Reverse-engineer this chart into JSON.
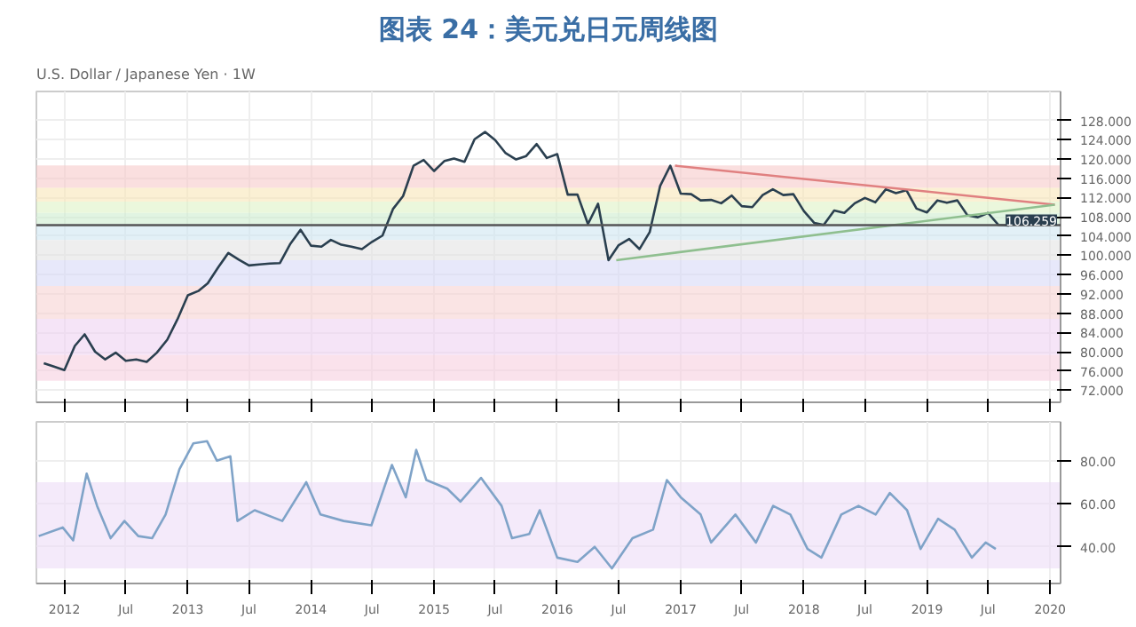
{
  "chart_data": [
    {
      "type": "line",
      "title": "图表 24：美元兑日元周线图",
      "subtitle": "U.S. Dollar / Japanese Yen · 1W",
      "grid": true,
      "tick_labels": "y",
      "xlim": [
        "2011-10-10",
        "2020-02-01"
      ],
      "xticks": [
        {
          "value": "2012",
          "label": null
        },
        {
          "value": "2012-07",
          "label": null
        },
        {
          "value": "2013",
          "label": null
        },
        {
          "value": "2013-07",
          "label": null
        },
        {
          "value": "2014",
          "label": null
        },
        {
          "value": "2014-07",
          "label": null
        },
        {
          "value": "2015",
          "label": null
        },
        {
          "value": "2015-07",
          "label": null
        },
        {
          "value": "2016",
          "label": null
        },
        {
          "value": "2016-07",
          "label": null
        },
        {
          "value": "2017",
          "label": null
        },
        {
          "value": "2017-07",
          "label": null
        },
        {
          "value": "2018",
          "label": null
        },
        {
          "value": "2018-07",
          "label": null
        },
        {
          "value": "2019",
          "label": null
        },
        {
          "value": "2019-07",
          "label": null
        },
        {
          "value": "2020",
          "label": null
        }
      ],
      "ylim": [
        69.5,
        134
      ],
      "yticks": [
        {
          "value": 72,
          "label": "72.000"
        },
        {
          "value": 76,
          "label": "76.000"
        },
        {
          "value": 80,
          "label": "80.000"
        },
        {
          "value": 84,
          "label": "84.000"
        },
        {
          "value": 88,
          "label": "88.000"
        },
        {
          "value": 92,
          "label": "92.000"
        },
        {
          "value": 96,
          "label": "96.000"
        },
        {
          "value": 100,
          "label": "100.000"
        },
        {
          "value": 104,
          "label": "104.000"
        },
        {
          "value": 108,
          "label": "108.000"
        },
        {
          "value": 112,
          "label": "112.000"
        },
        {
          "value": 116,
          "label": "116.000"
        },
        {
          "value": 120,
          "label": "120.000"
        },
        {
          "value": 124,
          "label": "124.000"
        },
        {
          "value": 128,
          "label": "128.000"
        }
      ],
      "bands": [
        {
          "axis": "y",
          "from": 114.0,
          "to": 118.66,
          "color": "#f6c9c9"
        },
        {
          "axis": "y",
          "from": 111.14,
          "to": 114.0,
          "color": "#f9e6b8"
        },
        {
          "axis": "y",
          "from": 108.82,
          "to": 111.14,
          "color": "#def2c4"
        },
        {
          "axis": "y",
          "from": 106.5,
          "to": 108.82,
          "color": "#cdeccf"
        },
        {
          "axis": "y",
          "from": 103.19,
          "to": 106.5,
          "color": "#cfe6f2"
        },
        {
          "axis": "y",
          "from": 98.98,
          "to": 103.19,
          "color": "#e3e3e3"
        },
        {
          "axis": "y",
          "from": 93.63,
          "to": 98.98,
          "color": "#d7d9f7"
        },
        {
          "axis": "y",
          "from": 86.82,
          "to": 93.63,
          "color": "#f7d2d2"
        },
        {
          "axis": "y",
          "from": 79.31,
          "to": 86.82,
          "color": "#efd2f2"
        },
        {
          "axis": "y",
          "from": 73.96,
          "to": 79.31,
          "color": "#f7cfe0"
        }
      ],
      "ref_lines": [
        {
          "axis": "y",
          "value": 106.259,
          "label": "106.259",
          "color": "#555555"
        }
      ],
      "series": [
        {
          "color": "#2a3f4f",
          "x": [
            "2011-11",
            "2011-12",
            "2012-01",
            "2012-02",
            "2012-03",
            "2012-04",
            "2012-05",
            "2012-06",
            "2012-07",
            "2012-08",
            "2012-09",
            "2012-10",
            "2012-11",
            "2012-12",
            "2013-01",
            "2013-02",
            "2013-03",
            "2013-04",
            "2013-05",
            "2013-06",
            "2013-07",
            "2013-08",
            "2013-09",
            "2013-10",
            "2013-11",
            "2013-12",
            "2014-01",
            "2014-02",
            "2014-03",
            "2014-04",
            "2014-05",
            "2014-06",
            "2014-07",
            "2014-08",
            "2014-09",
            "2014-10",
            "2014-11",
            "2014-12",
            "2015-01",
            "2015-02",
            "2015-03",
            "2015-04",
            "2015-05",
            "2015-06",
            "2015-07",
            "2015-08",
            "2015-09",
            "2015-10",
            "2015-11",
            "2015-12",
            "2016-01",
            "2016-02",
            "2016-03",
            "2016-04",
            "2016-05",
            "2016-06",
            "2016-07",
            "2016-08",
            "2016-09",
            "2016-10",
            "2016-11",
            "2016-12",
            "2017-01",
            "2017-02",
            "2017-03",
            "2017-04",
            "2017-05",
            "2017-06",
            "2017-07",
            "2017-08",
            "2017-09",
            "2017-10",
            "2017-11",
            "2017-12",
            "2018-01",
            "2018-02",
            "2018-03",
            "2018-04",
            "2018-05",
            "2018-06",
            "2018-07",
            "2018-08",
            "2018-09",
            "2018-10",
            "2018-11",
            "2018-12",
            "2019-01",
            "2019-02",
            "2019-03",
            "2019-04",
            "2019-05",
            "2019-06",
            "2019-07",
            "2019-08",
            "2019-09"
          ],
          "values": [
            77.6,
            76.9,
            76.2,
            81.2,
            83.6,
            80.0,
            78.4,
            79.8,
            78.1,
            78.4,
            77.9,
            79.8,
            82.5,
            86.7,
            91.7,
            92.6,
            94.2,
            97.5,
            100.5,
            99.1,
            97.9,
            98.1,
            98.3,
            98.4,
            102.4,
            105.3,
            102.0,
            101.8,
            103.2,
            102.2,
            101.8,
            101.3,
            102.8,
            104.1,
            109.6,
            112.3,
            118.6,
            119.8,
            117.5,
            119.6,
            120.1,
            119.4,
            124.1,
            125.6,
            123.9,
            121.2,
            119.9,
            120.6,
            123.1,
            120.2,
            121.0,
            112.6,
            112.6,
            106.5,
            110.7,
            99.0,
            102.1,
            103.4,
            101.3,
            104.8,
            114.4,
            118.6,
            112.8,
            112.7,
            111.4,
            111.5,
            110.8,
            112.4,
            110.2,
            110.0,
            112.5,
            113.7,
            112.5,
            112.7,
            109.2,
            106.7,
            106.3,
            109.3,
            108.8,
            110.8,
            111.9,
            111.0,
            113.7,
            112.9,
            113.5,
            109.7,
            108.9,
            111.4,
            110.9,
            111.4,
            108.3,
            107.9,
            108.8,
            106.3,
            106.2
          ]
        },
        {
          "color": "#e08080",
          "x": [
            "2016-12-15",
            "2020-01-15"
          ],
          "values": [
            118.6,
            110.5
          ]
        },
        {
          "color": "#8fbf8f",
          "x": [
            "2016-06-24",
            "2020-01-15"
          ],
          "values": [
            99.0,
            110.5
          ]
        }
      ]
    },
    {
      "type": "line",
      "grid": true,
      "xlim": [
        "2011-10-10",
        "2020-02-01"
      ],
      "xticks": [
        {
          "value": "2012",
          "label": "2012"
        },
        {
          "value": "2012-07",
          "label": "Jul"
        },
        {
          "value": "2013",
          "label": "2013"
        },
        {
          "value": "2013-07",
          "label": "Jul"
        },
        {
          "value": "2014",
          "label": "2014"
        },
        {
          "value": "2014-07",
          "label": "Jul"
        },
        {
          "value": "2015",
          "label": "2015"
        },
        {
          "value": "2015-07",
          "label": "Jul"
        },
        {
          "value": "2016",
          "label": "2016"
        },
        {
          "value": "2016-07",
          "label": "Jul"
        },
        {
          "value": "2017",
          "label": "2017"
        },
        {
          "value": "2017-07",
          "label": "Jul"
        },
        {
          "value": "2018",
          "label": "2018"
        },
        {
          "value": "2018-07",
          "label": "Jul"
        },
        {
          "value": "2019",
          "label": "2019"
        },
        {
          "value": "2019-07",
          "label": "Jul"
        },
        {
          "value": "2020",
          "label": "2020"
        }
      ],
      "ylim": [
        23,
        98
      ],
      "yticks": [
        {
          "value": 40,
          "label": "40.00"
        },
        {
          "value": 60,
          "label": "60.00"
        },
        {
          "value": 80,
          "label": "80.00"
        }
      ],
      "bands": [
        {
          "axis": "y",
          "from": 30,
          "to": 70,
          "color": "#ecdcf7"
        }
      ],
      "series": [
        {
          "color": "#7fa3c8",
          "x": [
            "2011-10-17",
            "2011-12-27",
            "2012-01-27",
            "2012-03-07",
            "2012-04-07",
            "2012-05-17",
            "2012-06-27",
            "2012-08-07",
            "2012-09-17",
            "2012-10-27",
            "2012-12-07",
            "2013-01-17",
            "2013-02-27",
            "2013-03-28",
            "2013-05-07",
            "2013-05-28",
            "2013-07-18",
            "2013-10-08",
            "2013-12-18",
            "2014-01-29",
            "2014-04-08",
            "2014-06-29",
            "2014-08-29",
            "2014-10-09",
            "2014-11-09",
            "2014-12-09",
            "2015-02-09",
            "2015-03-20",
            "2015-05-20",
            "2015-07-20",
            "2015-08-20",
            "2015-10-10",
            "2015-11-10",
            "2016-01-01",
            "2016-03-01",
            "2016-04-21",
            "2016-06-11",
            "2016-08-11",
            "2016-10-11",
            "2016-11-21",
            "2017-01-01",
            "2017-03-01",
            "2017-04-01",
            "2017-06-12",
            "2017-08-12",
            "2017-10-02",
            "2017-11-22",
            "2018-01-12",
            "2018-02-22",
            "2018-04-22",
            "2018-06-12",
            "2018-08-02",
            "2018-09-13",
            "2018-11-03",
            "2018-12-13",
            "2019-02-03",
            "2019-03-24",
            "2019-05-14",
            "2019-06-24",
            "2019-07-24"
          ],
          "values": [
            45,
            49,
            43,
            74,
            59,
            44,
            52,
            45,
            44,
            55,
            76,
            88,
            89,
            80,
            82,
            52,
            57,
            52,
            70,
            55,
            52,
            50,
            78,
            63,
            85,
            71,
            67,
            61,
            72,
            59,
            44,
            46,
            57,
            35,
            33,
            40,
            30,
            44,
            48,
            71,
            63,
            55,
            42,
            55,
            42,
            59,
            55,
            39,
            35,
            55,
            59,
            55,
            65,
            57,
            39,
            53,
            48,
            35,
            42,
            39
          ]
        }
      ]
    }
  ]
}
